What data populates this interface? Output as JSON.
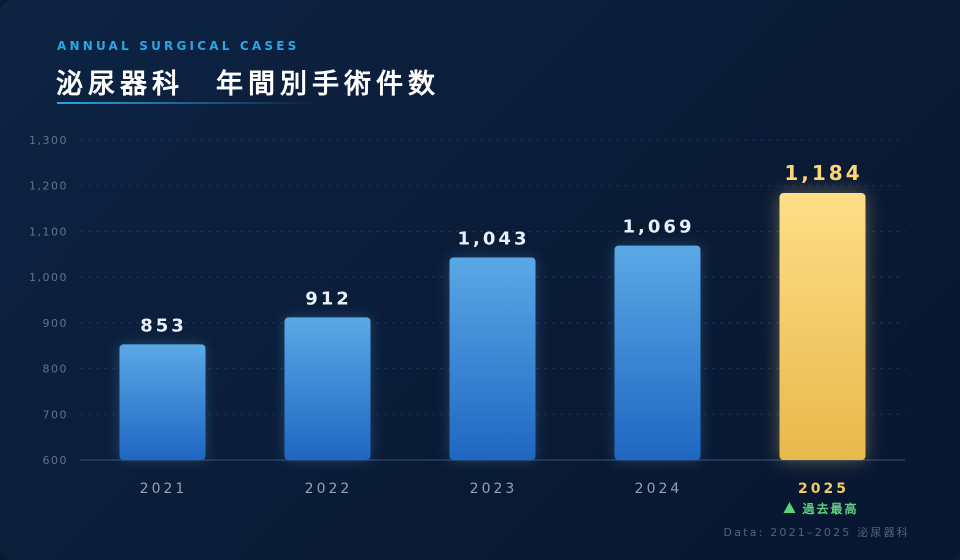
{
  "header": {
    "subtitle": "ANNUAL SURGICAL CASES",
    "title": "泌尿器科　年間別手術件数"
  },
  "footer": {
    "source": "Data: 2021–2025  泌尿器科"
  },
  "colors": {
    "bar_top": "#5aa9e6",
    "bar_bottom": "#1f66c2",
    "highlight_top": "#ffde86",
    "highlight_bottom": "#e8b84b",
    "note": "#5fd07e"
  },
  "chart_data": {
    "type": "bar",
    "categories": [
      "2021",
      "2022",
      "2023",
      "2024",
      "2025"
    ],
    "values": [
      853,
      912,
      1043,
      1069,
      1184
    ],
    "value_labels": [
      "853",
      "912",
      "1,043",
      "1,069",
      "1,184"
    ],
    "ylim": [
      600,
      1300
    ],
    "yticks": [
      600,
      700,
      800,
      900,
      1000,
      1100,
      1200,
      1300
    ],
    "ytick_labels": [
      "600",
      "700",
      "800",
      "900",
      "1,000",
      "1,100",
      "1,200",
      "1,300"
    ],
    "grid": true,
    "highlight_index": 4,
    "highlight_note": "過去最高",
    "note_icon": "up-triangle-icon"
  }
}
